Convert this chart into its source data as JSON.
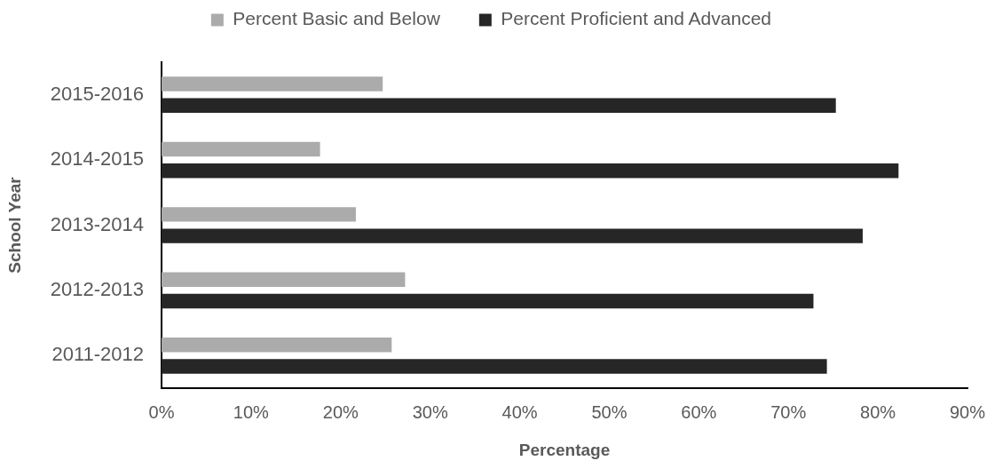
{
  "chart_data": {
    "type": "bar",
    "orientation": "horizontal",
    "categories": [
      "2015-2016",
      "2014-2015",
      "2013-2014",
      "2012-2013",
      "2011-2012"
    ],
    "series": [
      {
        "name": "Percent Basic and Below",
        "color": "#ababab",
        "values": [
          24.7,
          17.7,
          21.7,
          27.2,
          25.7
        ]
      },
      {
        "name": "Percent Proficient and Advanced",
        "color": "#262626",
        "values": [
          75.3,
          82.3,
          78.3,
          72.8,
          74.3
        ]
      }
    ],
    "xlabel": "Percentage",
    "ylabel": "School Year",
    "xlim": [
      0,
      90
    ],
    "xticks": [
      {
        "value": 0,
        "label": "0%"
      },
      {
        "value": 10,
        "label": "10%"
      },
      {
        "value": 20,
        "label": "20%"
      },
      {
        "value": 30,
        "label": "30%"
      },
      {
        "value": 40,
        "label": "40%"
      },
      {
        "value": 50,
        "label": "50%"
      },
      {
        "value": 60,
        "label": "60%"
      },
      {
        "value": 70,
        "label": "70%"
      },
      {
        "value": 80,
        "label": "80%"
      },
      {
        "value": 90,
        "label": "90%"
      }
    ],
    "grid": false,
    "legend": "top"
  }
}
